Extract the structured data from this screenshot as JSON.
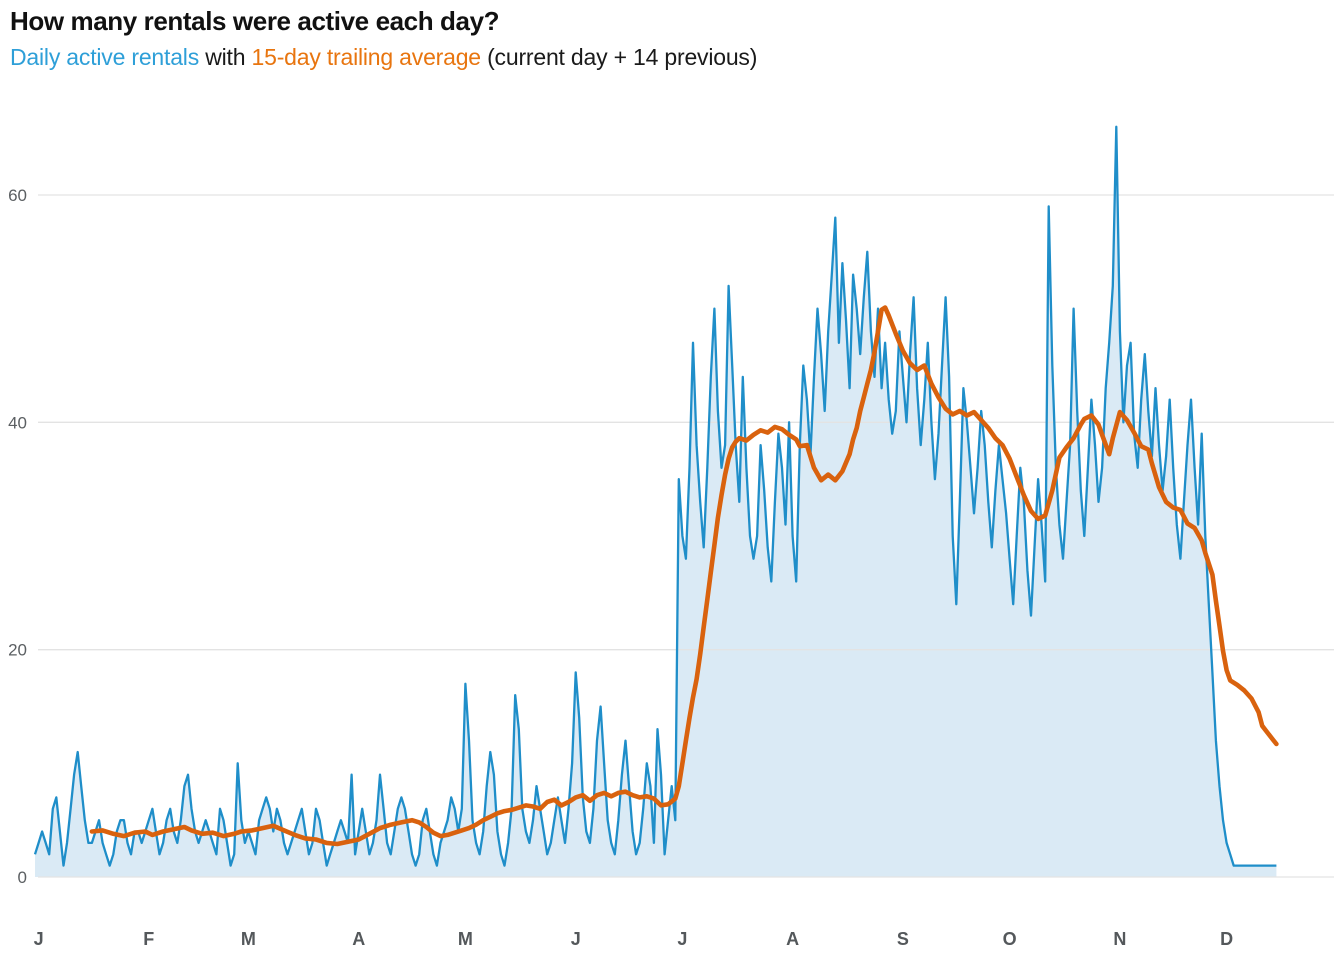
{
  "header": {
    "title": "How many rentals were active each day?",
    "subtitle_parts": [
      {
        "text": "Daily active rentals",
        "color": "#2e9fd8"
      },
      {
        "text": " with ",
        "color": "#1a1a1a"
      },
      {
        "text": "15-day trailing average",
        "color": "#e8750f"
      },
      {
        "text": " (current day + 14 previous)",
        "color": "#1a1a1a"
      }
    ]
  },
  "chart_data": {
    "type": "area",
    "x_unit": "day-of-year",
    "domain_days": 350,
    "month_labels": [
      "J",
      "F",
      "M",
      "A",
      "M",
      "J",
      "J",
      "A",
      "S",
      "O",
      "N",
      "D"
    ],
    "month_start_days": [
      0,
      31,
      59,
      90,
      120,
      151,
      181,
      212,
      243,
      273,
      304,
      334
    ],
    "y_ticks": [
      0,
      20,
      40,
      60
    ],
    "ylim": [
      0,
      67.5
    ],
    "grid_on": true,
    "grid_color": "#e3e3e3",
    "tick_label_color": "#5b5f62",
    "month_label_color": "#54585b",
    "series": [
      {
        "name": "Daily active rentals",
        "kind": "area-line",
        "line_color": "#1f8ec9",
        "fill_color": "#daeaf5",
        "values": [
          2,
          3,
          4,
          3,
          2,
          6,
          7,
          4,
          1,
          3,
          6,
          9,
          11,
          8,
          5,
          3,
          3,
          4,
          5,
          3,
          2,
          1,
          2,
          4,
          5,
          5,
          3,
          2,
          4,
          4,
          3,
          4,
          5,
          6,
          4,
          2,
          3,
          5,
          6,
          4,
          3,
          5,
          8,
          9,
          6,
          4,
          3,
          4,
          5,
          4,
          3,
          2,
          6,
          5,
          3,
          1,
          2,
          10,
          5,
          3,
          4,
          3,
          2,
          5,
          6,
          7,
          6,
          4,
          6,
          5,
          3,
          2,
          3,
          4,
          5,
          6,
          4,
          2,
          3,
          6,
          5,
          3,
          1,
          2,
          3,
          4,
          5,
          4,
          3,
          9,
          2,
          4,
          6,
          4,
          2,
          3,
          5,
          9,
          6,
          3,
          2,
          4,
          6,
          7,
          6,
          4,
          2,
          1,
          2,
          5,
          6,
          4,
          2,
          1,
          3,
          4,
          5,
          7,
          6,
          4,
          6,
          17,
          12,
          5,
          3,
          2,
          4,
          8,
          11,
          9,
          4,
          2,
          1,
          3,
          6,
          16,
          13,
          6,
          4,
          3,
          5,
          8,
          6,
          4,
          2,
          3,
          5,
          7,
          5,
          3,
          6,
          10,
          18,
          14,
          7,
          4,
          3,
          6,
          12,
          15,
          10,
          5,
          3,
          2,
          5,
          9,
          12,
          8,
          4,
          2,
          3,
          6,
          10,
          8,
          3,
          13,
          9,
          2,
          5,
          8,
          5,
          35,
          30,
          28,
          36,
          47,
          38,
          33,
          29,
          36,
          44,
          50,
          41,
          36,
          38,
          52,
          45,
          38,
          33,
          44,
          36,
          30,
          28,
          30,
          38,
          34,
          29,
          26,
          33,
          39,
          36,
          31,
          40,
          30,
          26,
          38,
          45,
          42,
          37,
          44,
          50,
          46,
          41,
          48,
          53,
          58,
          47,
          54,
          49,
          43,
          53,
          50,
          46,
          51,
          55,
          48,
          44,
          50,
          43,
          47,
          42,
          39,
          41,
          48,
          44,
          40,
          46,
          51,
          43,
          38,
          42,
          47,
          40,
          35,
          39,
          45,
          51,
          44,
          30,
          24,
          33,
          43,
          40,
          36,
          32,
          36,
          41,
          38,
          33,
          29,
          34,
          38,
          35,
          32,
          28,
          24,
          30,
          36,
          33,
          27,
          23,
          29,
          35,
          31,
          26,
          59,
          45,
          36,
          31,
          28,
          33,
          38,
          50,
          41,
          34,
          30,
          36,
          42,
          38,
          33,
          36,
          43,
          47,
          52,
          66,
          48,
          40,
          45,
          47,
          39,
          36,
          42,
          46,
          41,
          37,
          43,
          38,
          34,
          37,
          42,
          36,
          31,
          28,
          33,
          38,
          42,
          36,
          31,
          39,
          30,
          24,
          18,
          12,
          8,
          5,
          3,
          2,
          1,
          1,
          1,
          1,
          1,
          1,
          1,
          1,
          1,
          1,
          1,
          1,
          1
        ]
      },
      {
        "name": "15-day trailing average",
        "kind": "line",
        "line_color": "#d9620e",
        "points": [
          [
            16,
            4.0
          ],
          [
            19,
            4.1
          ],
          [
            22,
            3.8
          ],
          [
            25,
            3.6
          ],
          [
            28,
            3.9
          ],
          [
            31,
            4.0
          ],
          [
            33,
            3.7
          ],
          [
            36,
            4.0
          ],
          [
            39,
            4.2
          ],
          [
            42,
            4.4
          ],
          [
            44,
            4.1
          ],
          [
            47,
            3.8
          ],
          [
            50,
            3.9
          ],
          [
            53,
            3.6
          ],
          [
            56,
            3.8
          ],
          [
            58,
            4.0
          ],
          [
            61,
            4.1
          ],
          [
            64,
            4.3
          ],
          [
            67,
            4.5
          ],
          [
            70,
            4.1
          ],
          [
            73,
            3.7
          ],
          [
            76,
            3.4
          ],
          [
            79,
            3.3
          ],
          [
            82,
            3.0
          ],
          [
            85,
            2.9
          ],
          [
            88,
            3.1
          ],
          [
            91,
            3.3
          ],
          [
            94,
            3.8
          ],
          [
            97,
            4.3
          ],
          [
            100,
            4.6
          ],
          [
            103,
            4.8
          ],
          [
            106,
            5.0
          ],
          [
            108,
            4.8
          ],
          [
            110,
            4.4
          ],
          [
            112,
            3.9
          ],
          [
            114,
            3.6
          ],
          [
            116,
            3.7
          ],
          [
            118,
            3.9
          ],
          [
            120,
            4.1
          ],
          [
            122,
            4.3
          ],
          [
            124,
            4.6
          ],
          [
            126,
            5.0
          ],
          [
            128,
            5.3
          ],
          [
            130,
            5.6
          ],
          [
            132,
            5.8
          ],
          [
            134,
            5.9
          ],
          [
            136,
            6.1
          ],
          [
            138,
            6.3
          ],
          [
            140,
            6.2
          ],
          [
            142,
            6.0
          ],
          [
            144,
            6.6
          ],
          [
            146,
            6.8
          ],
          [
            148,
            6.3
          ],
          [
            150,
            6.6
          ],
          [
            152,
            7.0
          ],
          [
            154,
            7.2
          ],
          [
            156,
            6.7
          ],
          [
            158,
            7.2
          ],
          [
            160,
            7.4
          ],
          [
            162,
            7.1
          ],
          [
            164,
            7.4
          ],
          [
            166,
            7.5
          ],
          [
            168,
            7.2
          ],
          [
            170,
            7.0
          ],
          [
            172,
            7.1
          ],
          [
            174,
            6.9
          ],
          [
            176,
            6.3
          ],
          [
            178,
            6.4
          ],
          [
            180,
            6.9
          ],
          [
            181,
            8.0
          ],
          [
            182,
            10.0
          ],
          [
            183,
            12.0
          ],
          [
            184,
            14.0
          ],
          [
            185,
            15.8
          ],
          [
            186,
            17.4
          ],
          [
            187,
            19.6
          ],
          [
            188,
            22.0
          ],
          [
            189,
            24.4
          ],
          [
            190,
            26.8
          ],
          [
            191,
            29.2
          ],
          [
            192,
            31.6
          ],
          [
            193,
            33.6
          ],
          [
            194,
            35.4
          ],
          [
            195,
            36.8
          ],
          [
            196,
            37.8
          ],
          [
            197,
            38.3
          ],
          [
            198,
            38.6
          ],
          [
            200,
            38.4
          ],
          [
            202,
            38.9
          ],
          [
            204,
            39.3
          ],
          [
            206,
            39.1
          ],
          [
            208,
            39.6
          ],
          [
            210,
            39.4
          ],
          [
            212,
            38.9
          ],
          [
            214,
            38.5
          ],
          [
            215,
            37.9
          ],
          [
            217,
            38.0
          ],
          [
            219,
            36.0
          ],
          [
            221,
            34.9
          ],
          [
            223,
            35.4
          ],
          [
            225,
            34.9
          ],
          [
            227,
            35.7
          ],
          [
            229,
            37.2
          ],
          [
            230,
            38.5
          ],
          [
            231,
            39.5
          ],
          [
            232,
            41.0
          ],
          [
            233,
            42.2
          ],
          [
            234,
            43.4
          ],
          [
            235,
            44.6
          ],
          [
            236,
            46.2
          ],
          [
            237,
            48.0
          ],
          [
            238,
            49.9
          ],
          [
            239,
            50.1
          ],
          [
            240,
            49.4
          ],
          [
            242,
            47.8
          ],
          [
            244,
            46.3
          ],
          [
            246,
            45.2
          ],
          [
            248,
            44.6
          ],
          [
            250,
            45.0
          ],
          [
            252,
            43.4
          ],
          [
            254,
            42.2
          ],
          [
            256,
            41.2
          ],
          [
            258,
            40.7
          ],
          [
            260,
            41.0
          ],
          [
            262,
            40.6
          ],
          [
            264,
            40.9
          ],
          [
            266,
            40.2
          ],
          [
            268,
            39.5
          ],
          [
            270,
            38.6
          ],
          [
            272,
            38.0
          ],
          [
            274,
            36.8
          ],
          [
            276,
            35.2
          ],
          [
            278,
            33.6
          ],
          [
            280,
            32.2
          ],
          [
            282,
            31.5
          ],
          [
            284,
            31.8
          ],
          [
            286,
            34.0
          ],
          [
            288,
            36.9
          ],
          [
            290,
            37.8
          ],
          [
            292,
            38.6
          ],
          [
            294,
            39.8
          ],
          [
            295,
            40.3
          ],
          [
            297,
            40.6
          ],
          [
            299,
            39.8
          ],
          [
            300,
            38.9
          ],
          [
            302,
            37.2
          ],
          [
            303,
            38.6
          ],
          [
            305,
            40.9
          ],
          [
            307,
            40.2
          ],
          [
            309,
            39.1
          ],
          [
            311,
            37.9
          ],
          [
            313,
            37.6
          ],
          [
            314,
            36.4
          ],
          [
            316,
            34.3
          ],
          [
            318,
            33.0
          ],
          [
            320,
            32.5
          ],
          [
            322,
            32.3
          ],
          [
            324,
            31.1
          ],
          [
            326,
            30.7
          ],
          [
            328,
            29.6
          ],
          [
            329,
            28.5
          ],
          [
            331,
            26.6
          ],
          [
            332,
            24.3
          ],
          [
            333,
            22.1
          ],
          [
            334,
            19.9
          ],
          [
            335,
            18.2
          ],
          [
            336,
            17.3
          ],
          [
            338,
            16.9
          ],
          [
            340,
            16.4
          ],
          [
            342,
            15.7
          ],
          [
            344,
            14.5
          ],
          [
            345,
            13.3
          ],
          [
            346,
            12.9
          ],
          [
            348,
            12.1
          ],
          [
            349,
            11.7
          ]
        ]
      }
    ]
  }
}
